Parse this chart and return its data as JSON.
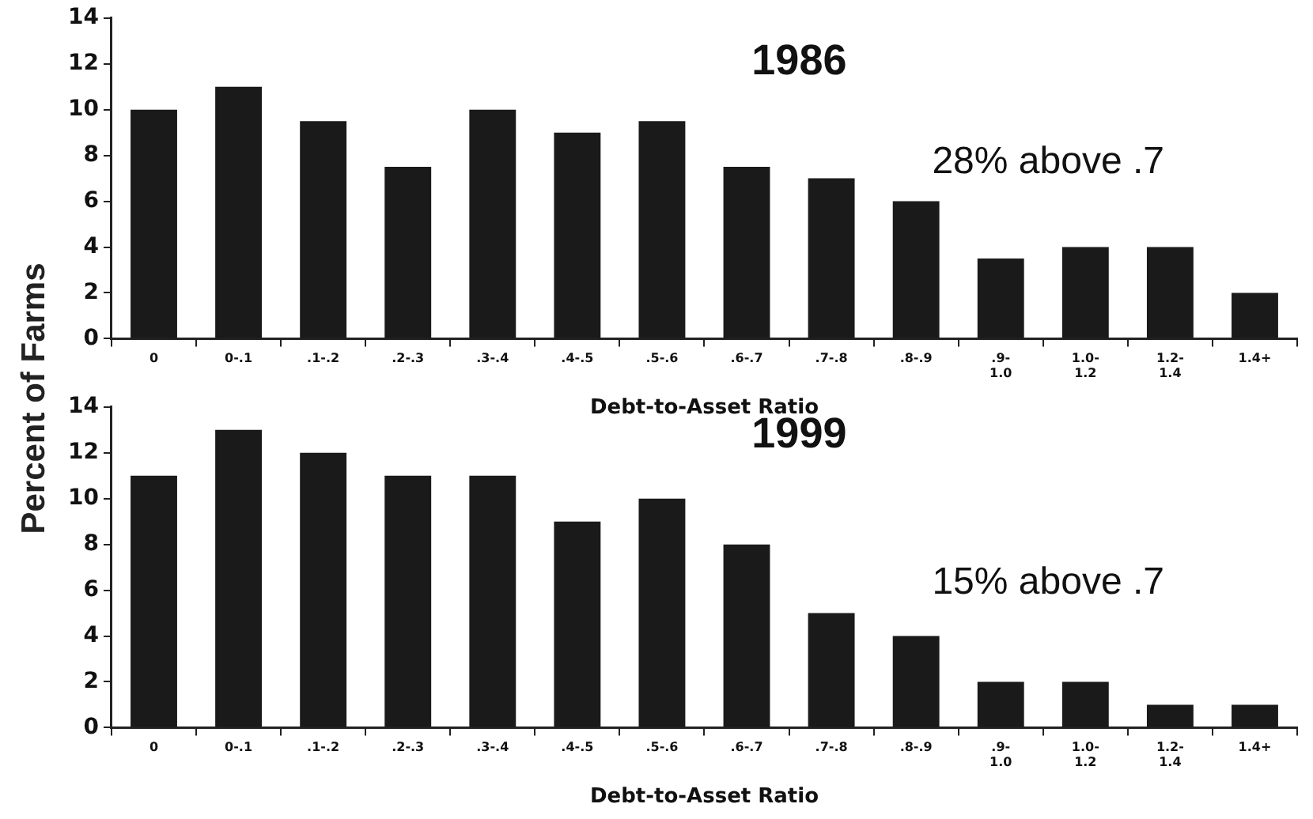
{
  "chart_data": [
    {
      "type": "bar",
      "title": "1986",
      "xlabel": "Debt-to-Asset Ratio",
      "ylabel": "Percent of Farms",
      "categories": [
        "0",
        "0-.1",
        ".1-.2",
        ".2-.3",
        ".3-.4",
        ".4-.5",
        ".5-.6",
        ".6-.7",
        ".7-.8",
        ".8-.9",
        ".9-\n1.0",
        "1.0-\n1.2",
        "1.2-\n1.4",
        "1.4+"
      ],
      "values": [
        10,
        11,
        9.5,
        7.5,
        10,
        9,
        9.5,
        7.5,
        7,
        6,
        3.5,
        4,
        4,
        2
      ],
      "color": "#1a1a1a",
      "ylim": [
        0,
        14
      ],
      "yticks": [
        0,
        2,
        4,
        6,
        8,
        10,
        12,
        14
      ],
      "grid": false,
      "legend": false,
      "annotations": [
        "28% above .7"
      ]
    },
    {
      "type": "bar",
      "title": "1999",
      "xlabel": "Debt-to-Asset Ratio",
      "categories": [
        "0",
        "0-.1",
        ".1-.2",
        ".2-.3",
        ".3-.4",
        ".4-.5",
        ".5-.6",
        ".6-.7",
        ".7-.8",
        ".8-.9",
        ".9-\n1.0",
        "1.0-\n1.2",
        "1.2-\n1.4",
        "1.4+"
      ],
      "values": [
        11,
        13,
        12,
        11,
        11,
        9,
        10,
        8,
        5,
        4,
        2,
        2,
        1,
        1
      ],
      "color": "#1a1a1a",
      "ylim": [
        0,
        14
      ],
      "yticks": [
        0,
        2,
        4,
        6,
        8,
        10,
        12,
        14
      ],
      "grid": false,
      "legend": false,
      "annotations": [
        "15% above .7"
      ]
    }
  ]
}
